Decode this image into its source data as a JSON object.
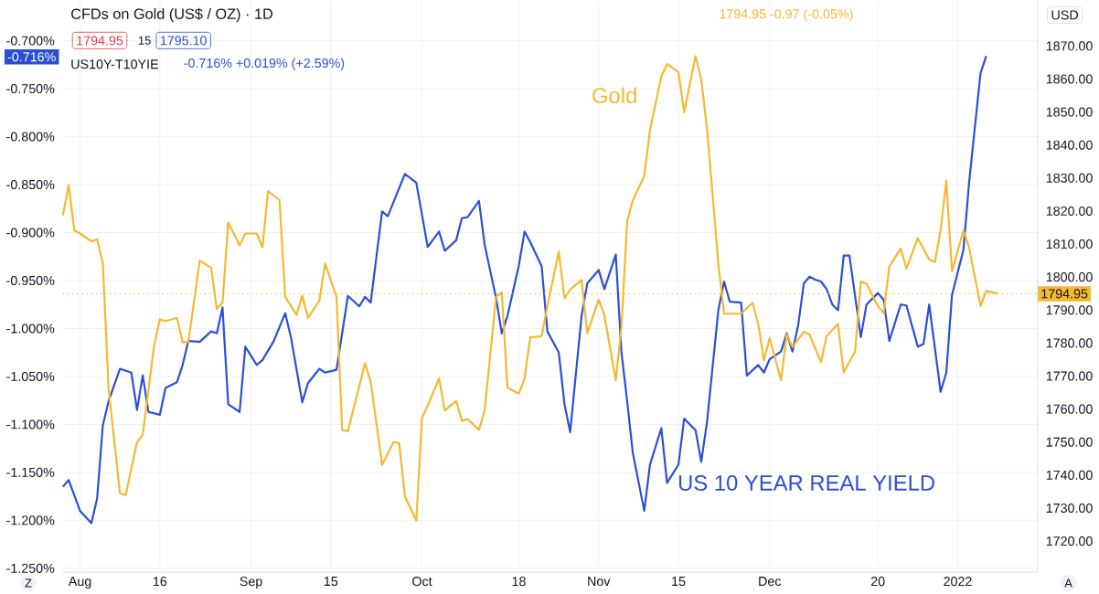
{
  "chart_data": {
    "type": "line",
    "title": "CFDs on Gold (US$ / OZ) · 1D",
    "annotations": [
      "1794.95 -0.97 (-0.05%)",
      "1794.95",
      "15",
      "1795.10",
      "US10Y-T10YIE",
      "-0.716% +0.019% (+2.59%)",
      "-0.716%",
      "USD",
      "Z",
      "A"
    ],
    "xlim": [
      "2021-07-30",
      "2022-01-17"
    ],
    "xticks": [
      {
        "value": "2021-08-02",
        "label": "Aug"
      },
      {
        "value": "2021-08-16",
        "label": "16"
      },
      {
        "value": "2021-09-01",
        "label": "Sep"
      },
      {
        "value": "2021-09-15",
        "label": "15"
      },
      {
        "value": "2021-10-01",
        "label": "Oct"
      },
      {
        "value": "2021-10-18",
        "label": "18"
      },
      {
        "value": "2021-11-01",
        "label": "Nov"
      },
      {
        "value": "2021-11-15",
        "label": "15"
      },
      {
        "value": "2021-12-01",
        "label": "Dec"
      },
      {
        "value": "2021-12-20",
        "label": "20"
      },
      {
        "value": "2022-01-03",
        "label": "2022"
      }
    ],
    "ylim": [
      -1.254,
      -0.658
    ],
    "yticks": [
      {
        "value": -0.7,
        "label": "-0.700%"
      },
      {
        "value": -0.75,
        "label": "-0.750%"
      },
      {
        "value": -0.8,
        "label": "-0.800%"
      },
      {
        "value": -0.85,
        "label": "-0.850%"
      },
      {
        "value": -0.9,
        "label": "-0.900%"
      },
      {
        "value": -0.95,
        "label": "-0.950%"
      },
      {
        "value": -1.0,
        "label": "-1.000%"
      },
      {
        "value": -1.05,
        "label": "-1.050%"
      },
      {
        "value": -1.1,
        "label": "-1.100%"
      },
      {
        "value": -1.15,
        "label": "-1.150%"
      },
      {
        "value": -1.2,
        "label": "-1.200%"
      },
      {
        "value": -1.25,
        "label": "-1.250%"
      }
    ],
    "y2lim": [
      1710.6,
      1883.8
    ],
    "y2ticks": [
      {
        "value": 1720,
        "label": "1720.00"
      },
      {
        "value": 1730,
        "label": "1730.00"
      },
      {
        "value": 1740,
        "label": "1740.00"
      },
      {
        "value": 1750,
        "label": "1750.00"
      },
      {
        "value": 1760,
        "label": "1760.00"
      },
      {
        "value": 1770,
        "label": "1770.00"
      },
      {
        "value": 1780,
        "label": "1780.00"
      },
      {
        "value": 1790,
        "label": "1790.00"
      },
      {
        "value": 1800,
        "label": "1800.00"
      },
      {
        "value": 1810,
        "label": "1810.00"
      },
      {
        "value": 1820,
        "label": "1820.00"
      },
      {
        "value": 1830,
        "label": "1830.00"
      },
      {
        "value": 1840,
        "label": "1840.00"
      },
      {
        "value": 1850,
        "label": "1850.00"
      },
      {
        "value": 1860,
        "label": "1860.00"
      },
      {
        "value": 1870,
        "label": "1870.00"
      }
    ],
    "grid": true,
    "ref_lines": [
      {
        "axis": "y2",
        "value": 1794.95,
        "label": "1794.95",
        "color": "#f5b82e",
        "line_style": "dotted"
      }
    ],
    "series": [
      {
        "name": "US 10 YEAR REAL YIELD",
        "color": "#2a4fd6",
        "x": [
          "2021-07-30",
          "2021-07-31",
          "2021-08-02",
          "2021-08-04",
          "2021-08-05",
          "2021-08-06",
          "2021-08-07",
          "2021-08-09",
          "2021-08-11",
          "2021-08-12",
          "2021-08-13",
          "2021-08-14",
          "2021-08-16",
          "2021-08-17",
          "2021-08-19",
          "2021-08-20",
          "2021-08-21",
          "2021-08-23",
          "2021-08-25",
          "2021-08-26",
          "2021-08-27",
          "2021-08-28",
          "2021-08-30",
          "2021-08-31",
          "2021-09-02",
          "2021-09-03",
          "2021-09-05",
          "2021-09-07",
          "2021-09-08",
          "2021-09-10",
          "2021-09-11",
          "2021-09-13",
          "2021-09-14",
          "2021-09-16",
          "2021-09-18",
          "2021-09-20",
          "2021-09-21",
          "2021-09-22",
          "2021-09-24",
          "2021-09-25",
          "2021-09-28",
          "2021-09-30",
          "2021-10-02",
          "2021-10-04",
          "2021-10-05",
          "2021-10-07",
          "2021-10-08",
          "2021-10-09",
          "2021-10-11",
          "2021-10-12",
          "2021-10-14",
          "2021-10-15",
          "2021-10-16",
          "2021-10-18",
          "2021-10-19",
          "2021-10-20",
          "2021-10-22",
          "2021-10-23",
          "2021-10-25",
          "2021-10-26",
          "2021-10-27",
          "2021-10-29",
          "2021-10-30",
          "2021-11-01",
          "2021-11-02",
          "2021-11-04",
          "2021-11-05",
          "2021-11-06",
          "2021-11-07",
          "2021-11-09",
          "2021-11-10",
          "2021-11-12",
          "2021-11-13",
          "2021-11-15",
          "2021-11-16",
          "2021-11-18",
          "2021-11-19",
          "2021-11-20",
          "2021-11-22",
          "2021-11-23",
          "2021-11-24",
          "2021-11-26",
          "2021-11-27",
          "2021-11-29",
          "2021-11-30",
          "2021-12-01",
          "2021-12-03",
          "2021-12-04",
          "2021-12-05",
          "2021-12-06",
          "2021-12-07",
          "2021-12-08",
          "2021-12-09",
          "2021-12-10",
          "2021-12-11",
          "2021-12-12",
          "2021-12-13",
          "2021-12-14",
          "2021-12-15",
          "2021-12-17",
          "2021-12-18",
          "2021-12-20",
          "2021-12-21",
          "2021-12-22",
          "2021-12-24",
          "2021-12-25",
          "2021-12-27",
          "2021-12-28",
          "2021-12-29",
          "2021-12-31",
          "2022-01-01",
          "2022-01-02",
          "2022-01-04",
          "2022-01-05",
          "2022-01-07",
          "2022-01-08"
        ],
        "values": [
          -1.165,
          -1.158,
          -1.19,
          -1.203,
          -1.177,
          -1.101,
          -1.076,
          -1.042,
          -1.046,
          -1.085,
          -1.049,
          -1.087,
          -1.09,
          -1.062,
          -1.056,
          -1.038,
          -1.013,
          -1.014,
          -1.003,
          -1.005,
          -0.978,
          -1.079,
          -1.087,
          -1.019,
          -1.038,
          -1.033,
          -1.013,
          -0.984,
          -1.009,
          -1.077,
          -1.057,
          -1.042,
          -1.046,
          -1.043,
          -0.966,
          -0.977,
          -0.967,
          -0.973,
          -0.878,
          -0.883,
          -0.839,
          -0.848,
          -0.915,
          -0.899,
          -0.919,
          -0.908,
          -0.885,
          -0.884,
          -0.867,
          -0.913,
          -0.968,
          -1.005,
          -0.987,
          -0.934,
          -0.899,
          -0.91,
          -0.935,
          -1.003,
          -1.025,
          -1.079,
          -1.108,
          -0.987,
          -0.953,
          -0.939,
          -0.959,
          -0.923,
          -1.025,
          -1.076,
          -1.13,
          -1.19,
          -1.142,
          -1.104,
          -1.161,
          -1.142,
          -1.094,
          -1.106,
          -1.139,
          -1.098,
          -0.981,
          -0.951,
          -0.972,
          -0.973,
          -1.049,
          -1.038,
          -1.046,
          -1.032,
          -1.024,
          -1.005,
          -1.024,
          -0.997,
          -0.953,
          -0.946,
          -0.949,
          -0.951,
          -0.959,
          -0.975,
          -0.981,
          -0.924,
          -0.924,
          -1.009,
          -0.975,
          -0.963,
          -0.97,
          -1.013,
          -0.975,
          -0.976,
          -1.019,
          -1.016,
          -0.975,
          -1.066,
          -1.046,
          -0.965,
          -0.918,
          -0.848,
          -0.734,
          -0.716
        ]
      },
      {
        "name": "Gold",
        "color": "#f5b82e",
        "axis": "y2",
        "x": [
          "2021-07-30",
          "2021-07-31",
          "2021-08-01",
          "2021-08-02",
          "2021-08-04",
          "2021-08-05",
          "2021-08-06",
          "2021-08-07",
          "2021-08-09",
          "2021-08-10",
          "2021-08-12",
          "2021-08-13",
          "2021-08-15",
          "2021-08-16",
          "2021-08-17",
          "2021-08-19",
          "2021-08-20",
          "2021-08-21",
          "2021-08-23",
          "2021-08-25",
          "2021-08-26",
          "2021-08-27",
          "2021-08-28",
          "2021-08-30",
          "2021-08-31",
          "2021-09-02",
          "2021-09-03",
          "2021-09-04",
          "2021-09-06",
          "2021-09-07",
          "2021-09-09",
          "2021-09-10",
          "2021-09-11",
          "2021-09-13",
          "2021-09-14",
          "2021-09-16",
          "2021-09-17",
          "2021-09-18",
          "2021-09-21",
          "2021-09-22",
          "2021-09-24",
          "2021-09-26",
          "2021-09-27",
          "2021-09-28",
          "2021-09-30",
          "2021-10-01",
          "2021-10-02",
          "2021-10-04",
          "2021-10-05",
          "2021-10-07",
          "2021-10-08",
          "2021-10-09",
          "2021-10-11",
          "2021-10-12",
          "2021-10-14",
          "2021-10-15",
          "2021-10-16",
          "2021-10-18",
          "2021-10-19",
          "2021-10-20",
          "2021-10-22",
          "2021-10-23",
          "2021-10-25",
          "2021-10-26",
          "2021-10-27",
          "2021-10-29",
          "2021-10-30",
          "2021-11-01",
          "2021-11-02",
          "2021-11-04",
          "2021-11-05",
          "2021-11-06",
          "2021-11-07",
          "2021-11-09",
          "2021-11-10",
          "2021-11-12",
          "2021-11-13",
          "2021-11-15",
          "2021-11-16",
          "2021-11-18",
          "2021-11-19",
          "2021-11-20",
          "2021-11-22",
          "2021-11-23",
          "2021-11-24",
          "2021-11-26",
          "2021-11-28",
          "2021-11-29",
          "2021-11-30",
          "2021-12-01",
          "2021-12-03",
          "2021-12-04",
          "2021-12-05",
          "2021-12-07",
          "2021-12-08",
          "2021-12-10",
          "2021-12-11",
          "2021-12-13",
          "2021-12-14",
          "2021-12-16",
          "2021-12-17",
          "2021-12-18",
          "2021-12-20",
          "2021-12-21",
          "2021-12-22",
          "2021-12-24",
          "2021-12-25",
          "2021-12-27",
          "2021-12-29",
          "2021-12-30",
          "2021-12-31",
          "2022-01-01",
          "2022-01-02",
          "2022-01-04",
          "2022-01-05",
          "2022-01-07",
          "2022-01-08",
          "2022-01-10"
        ],
        "values": [
          1818.7,
          1827.9,
          1814.1,
          1813.2,
          1810.8,
          1811.4,
          1804.1,
          1766.5,
          1734.5,
          1733.9,
          1750.0,
          1752.2,
          1779.3,
          1787.2,
          1786.7,
          1787.6,
          1780.3,
          1780.3,
          1805.0,
          1802.8,
          1790.3,
          1792.2,
          1816.5,
          1809.6,
          1813.2,
          1813.2,
          1809.0,
          1826.0,
          1823.3,
          1794.0,
          1788.5,
          1794.4,
          1787.6,
          1792.9,
          1804.1,
          1794.0,
          1753.7,
          1753.3,
          1773.8,
          1768.4,
          1743.1,
          1750.0,
          1749.7,
          1733.6,
          1726.2,
          1757.4,
          1761.0,
          1769.3,
          1759.6,
          1762.5,
          1756.4,
          1757.0,
          1753.7,
          1759.6,
          1794.0,
          1795.3,
          1766.5,
          1764.7,
          1769.3,
          1781.7,
          1782.1,
          1791.2,
          1807.7,
          1793.6,
          1796.2,
          1799.1,
          1783.0,
          1793.1,
          1788.5,
          1768.7,
          1784.8,
          1816.9,
          1823.3,
          1830.6,
          1844.4,
          1860.8,
          1864.5,
          1862.1,
          1849.9,
          1866.9,
          1859.9,
          1845.3,
          1804.1,
          1788.9,
          1788.9,
          1788.9,
          1792.2,
          1785.8,
          1774.8,
          1781.5,
          1768.7,
          1782.6,
          1778.8,
          1783.4,
          1782.6,
          1774.2,
          1782.1,
          1785.8,
          1771.1,
          1777.5,
          1798.6,
          1798.0,
          1791.2,
          1789.0,
          1803.2,
          1808.6,
          1802.6,
          1811.8,
          1805.3,
          1804.6,
          1814.1,
          1829.2,
          1801.7,
          1814.1,
          1809.0,
          1791.2,
          1795.8,
          1794.95
        ]
      }
    ]
  }
}
